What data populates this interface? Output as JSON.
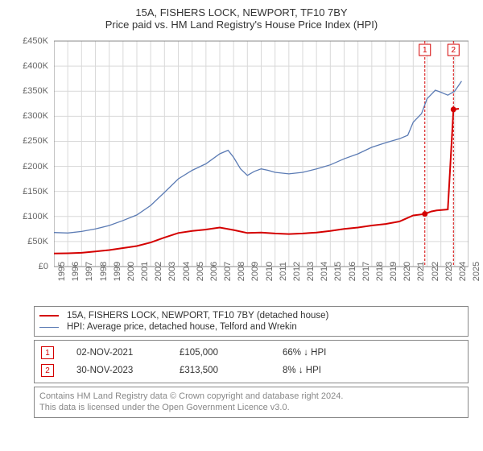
{
  "title": "15A, FISHERS LOCK, NEWPORT, TF10 7BY",
  "subtitle": "Price paid vs. HM Land Registry's House Price Index (HPI)",
  "chart": {
    "type": "line",
    "xlim": [
      1995,
      2025
    ],
    "ylim": [
      0,
      450000
    ],
    "ytick_step": 50000,
    "x_ticks": [
      1995,
      1996,
      1997,
      1998,
      1999,
      2000,
      2001,
      2002,
      2003,
      2004,
      2005,
      2006,
      2007,
      2008,
      2009,
      2010,
      2011,
      2012,
      2013,
      2014,
      2015,
      2016,
      2017,
      2018,
      2019,
      2020,
      2021,
      2022,
      2023,
      2024,
      2025
    ],
    "y_tick_labels": [
      "£0",
      "£50K",
      "£100K",
      "£150K",
      "£200K",
      "£250K",
      "£300K",
      "£350K",
      "£400K",
      "£450K"
    ],
    "background_color": "#ffffff",
    "grid_color": "#d9d9d9",
    "axis_color": "#888888",
    "label_fontsize": 11,
    "series": [
      {
        "name": "property",
        "label": "15A, FISHERS LOCK, NEWPORT, TF10 7BY (detached house)",
        "color": "#d40000",
        "width": 2,
        "points": [
          [
            1995,
            26000
          ],
          [
            1996,
            26500
          ],
          [
            1997,
            27500
          ],
          [
            1998,
            30000
          ],
          [
            1999,
            33000
          ],
          [
            2000,
            37000
          ],
          [
            2001,
            41000
          ],
          [
            2002,
            48000
          ],
          [
            2003,
            58000
          ],
          [
            2004,
            67000
          ],
          [
            2005,
            71000
          ],
          [
            2006,
            74000
          ],
          [
            2007,
            78000
          ],
          [
            2008,
            73000
          ],
          [
            2009,
            67000
          ],
          [
            2010,
            68000
          ],
          [
            2011,
            66000
          ],
          [
            2012,
            65000
          ],
          [
            2013,
            66000
          ],
          [
            2014,
            68000
          ],
          [
            2015,
            71000
          ],
          [
            2016,
            75000
          ],
          [
            2017,
            78000
          ],
          [
            2018,
            82000
          ],
          [
            2019,
            85000
          ],
          [
            2020,
            90000
          ],
          [
            2021,
            102000
          ],
          [
            2021.84,
            105000
          ],
          [
            2022.3,
            110000
          ],
          [
            2022.7,
            112000
          ],
          [
            2023.5,
            114000
          ],
          [
            2023.91,
            313500
          ],
          [
            2024.3,
            315000
          ]
        ],
        "dots": [
          {
            "x": 2021.84,
            "y": 105000
          },
          {
            "x": 2023.91,
            "y": 313500
          }
        ]
      },
      {
        "name": "hpi",
        "label": "HPI: Average price, detached house, Telford and Wrekin",
        "color": "#5b7bb4",
        "width": 1.3,
        "points": [
          [
            1995,
            68000
          ],
          [
            1996,
            67000
          ],
          [
            1997,
            70000
          ],
          [
            1998,
            75000
          ],
          [
            1999,
            82000
          ],
          [
            2000,
            92000
          ],
          [
            2001,
            103000
          ],
          [
            2002,
            122000
          ],
          [
            2003,
            148000
          ],
          [
            2004,
            175000
          ],
          [
            2005,
            192000
          ],
          [
            2006,
            205000
          ],
          [
            2007,
            225000
          ],
          [
            2007.6,
            232000
          ],
          [
            2008,
            218000
          ],
          [
            2008.5,
            195000
          ],
          [
            2009,
            182000
          ],
          [
            2009.5,
            190000
          ],
          [
            2010,
            195000
          ],
          [
            2010.5,
            192000
          ],
          [
            2011,
            188000
          ],
          [
            2012,
            185000
          ],
          [
            2013,
            188000
          ],
          [
            2014,
            195000
          ],
          [
            2015,
            203000
          ],
          [
            2016,
            215000
          ],
          [
            2017,
            225000
          ],
          [
            2018,
            238000
          ],
          [
            2019,
            247000
          ],
          [
            2020,
            255000
          ],
          [
            2020.6,
            262000
          ],
          [
            2021,
            288000
          ],
          [
            2021.6,
            305000
          ],
          [
            2022,
            335000
          ],
          [
            2022.6,
            352000
          ],
          [
            2023,
            348000
          ],
          [
            2023.5,
            342000
          ],
          [
            2024,
            350000
          ],
          [
            2024.5,
            370000
          ]
        ]
      }
    ],
    "callouts": [
      {
        "n": "1",
        "x": 2021.84,
        "color": "#d40000"
      },
      {
        "n": "2",
        "x": 2023.91,
        "color": "#d40000"
      }
    ]
  },
  "legend": {
    "items": [
      {
        "color": "#d40000",
        "width": 2,
        "label": "15A, FISHERS LOCK, NEWPORT, TF10 7BY (detached house)"
      },
      {
        "color": "#5b7bb4",
        "width": 1.5,
        "label": "HPI: Average price, detached house, Telford and Wrekin"
      }
    ]
  },
  "markers": [
    {
      "n": "1",
      "color": "#d40000",
      "date": "02-NOV-2021",
      "price": "£105,000",
      "pct": "66%",
      "arrow": "↓",
      "vs": "HPI"
    },
    {
      "n": "2",
      "color": "#d40000",
      "date": "30-NOV-2023",
      "price": "£313,500",
      "pct": "8%",
      "arrow": "↓",
      "vs": "HPI"
    }
  ],
  "attribution": {
    "line1": "Contains HM Land Registry data © Crown copyright and database right 2024.",
    "line2": "This data is licensed under the Open Government Licence v3.0."
  }
}
